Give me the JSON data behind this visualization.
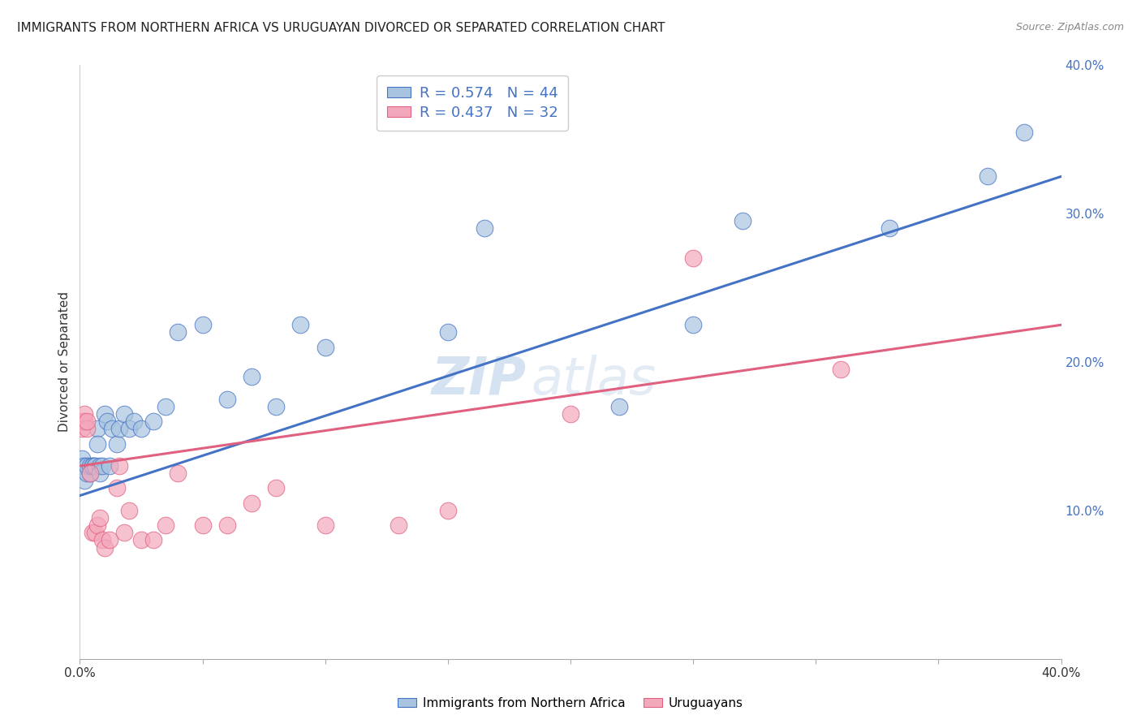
{
  "title": "IMMIGRANTS FROM NORTHERN AFRICA VS URUGUAYAN DIVORCED OR SEPARATED CORRELATION CHART",
  "source": "Source: ZipAtlas.com",
  "ylabel": "Divorced or Separated",
  "xlim": [
    0.0,
    0.4
  ],
  "ylim": [
    0.0,
    0.4
  ],
  "ytick_positions": [
    0.0,
    0.05,
    0.1,
    0.15,
    0.2,
    0.25,
    0.3,
    0.35,
    0.4
  ],
  "ytick_labels_right": [
    "",
    "",
    "10.0%",
    "",
    "20.0%",
    "",
    "30.0%",
    "",
    "40.0%"
  ],
  "xtick_positions": [
    0.0,
    0.05,
    0.1,
    0.15,
    0.2,
    0.25,
    0.3,
    0.35,
    0.4
  ],
  "xtick_labels": [
    "0.0%",
    "",
    "",
    "",
    "",
    "",
    "",
    "",
    "40.0%"
  ],
  "legend_label1": "R = 0.574   N = 44",
  "legend_label2": "R = 0.437   N = 32",
  "scatter_color1": "#a8c4e0",
  "scatter_color2": "#f4a8bc",
  "line_color1": "#4472c4",
  "line_color2": "#e06080",
  "watermark": "ZIPatlas",
  "background_color": "#ffffff",
  "grid_color": "#cccccc",
  "blue_scatter_x": [
    0.001,
    0.001,
    0.002,
    0.002,
    0.003,
    0.003,
    0.004,
    0.004,
    0.005,
    0.005,
    0.006,
    0.006,
    0.007,
    0.007,
    0.008,
    0.008,
    0.009,
    0.01,
    0.011,
    0.012,
    0.013,
    0.015,
    0.016,
    0.018,
    0.02,
    0.022,
    0.025,
    0.03,
    0.035,
    0.04,
    0.05,
    0.06,
    0.07,
    0.08,
    0.09,
    0.1,
    0.15,
    0.165,
    0.22,
    0.25,
    0.27,
    0.33,
    0.37,
    0.385
  ],
  "blue_scatter_y": [
    0.13,
    0.135,
    0.12,
    0.13,
    0.125,
    0.13,
    0.125,
    0.13,
    0.13,
    0.13,
    0.13,
    0.13,
    0.155,
    0.145,
    0.13,
    0.125,
    0.13,
    0.165,
    0.16,
    0.13,
    0.155,
    0.145,
    0.155,
    0.165,
    0.155,
    0.16,
    0.155,
    0.16,
    0.17,
    0.22,
    0.225,
    0.175,
    0.19,
    0.17,
    0.225,
    0.21,
    0.22,
    0.29,
    0.17,
    0.225,
    0.295,
    0.29,
    0.325,
    0.355
  ],
  "pink_scatter_x": [
    0.001,
    0.001,
    0.002,
    0.002,
    0.003,
    0.003,
    0.004,
    0.005,
    0.006,
    0.007,
    0.008,
    0.009,
    0.01,
    0.012,
    0.015,
    0.016,
    0.018,
    0.02,
    0.025,
    0.03,
    0.035,
    0.04,
    0.05,
    0.06,
    0.07,
    0.08,
    0.1,
    0.13,
    0.15,
    0.2,
    0.25,
    0.31
  ],
  "pink_scatter_y": [
    0.155,
    0.16,
    0.16,
    0.165,
    0.155,
    0.16,
    0.125,
    0.085,
    0.085,
    0.09,
    0.095,
    0.08,
    0.075,
    0.08,
    0.115,
    0.13,
    0.085,
    0.1,
    0.08,
    0.08,
    0.09,
    0.125,
    0.09,
    0.09,
    0.105,
    0.115,
    0.09,
    0.09,
    0.1,
    0.165,
    0.27,
    0.195
  ],
  "blue_line_x": [
    0.0,
    0.4
  ],
  "blue_line_y": [
    0.11,
    0.325
  ],
  "pink_line_x": [
    0.0,
    0.4
  ],
  "pink_line_y": [
    0.13,
    0.225
  ],
  "bottom_legend1": "Immigrants from Northern Africa",
  "bottom_legend2": "Uruguayans"
}
